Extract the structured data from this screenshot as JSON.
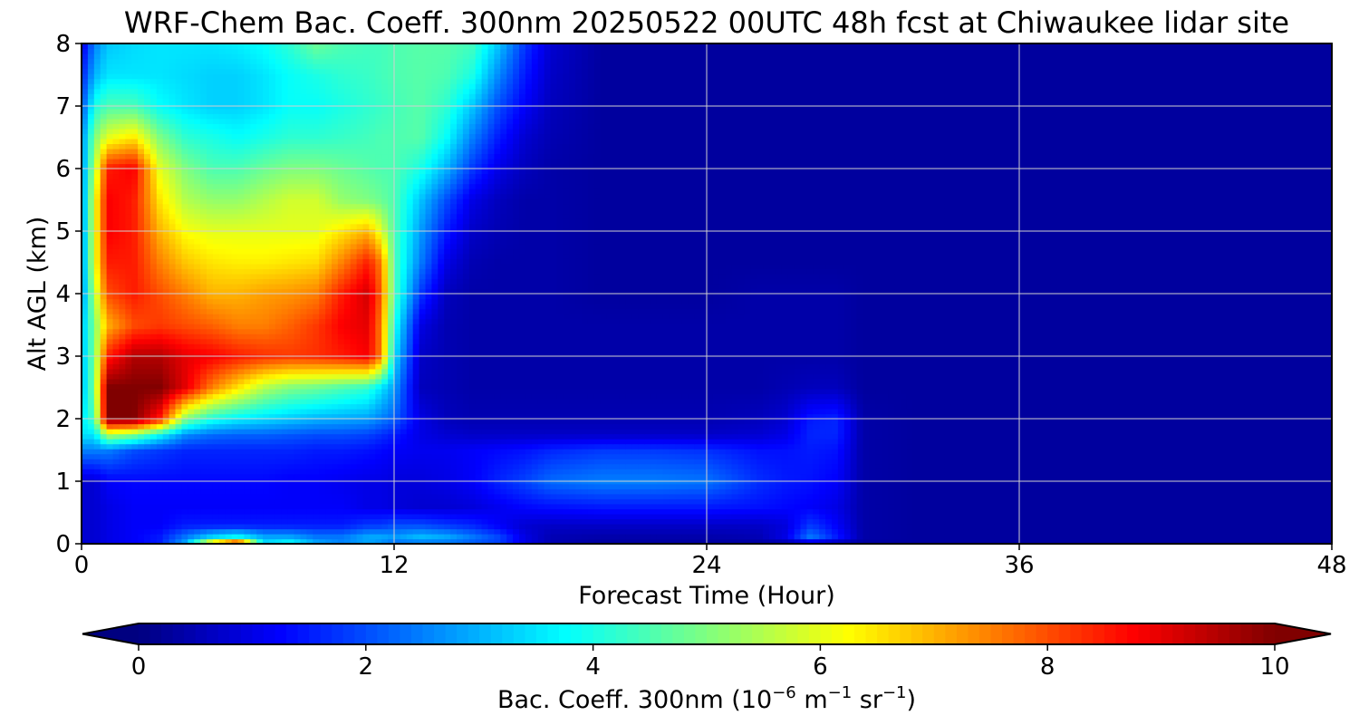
{
  "chart_data": {
    "type": "heatmap",
    "title": "WRF-Chem Bac. Coeff. 300nm  20250522 00UTC 48h fcst at Chiwaukee lidar site",
    "xlabel": "Forecast Time (Hour)",
    "ylabel": "Alt AGL (km)",
    "xlim": [
      0,
      48
    ],
    "ylim": [
      0,
      8
    ],
    "xticks": [
      0,
      12,
      24,
      36,
      48
    ],
    "yticks": [
      0,
      1,
      2,
      3,
      4,
      5,
      6,
      7,
      8
    ],
    "grid": true,
    "colorbar": {
      "label_main": "Bac. Coeff. 300nm  (10",
      "label_exp1": "−6",
      "label_mid": " m",
      "label_exp2": "−1",
      "label_mid2": " sr",
      "label_exp3": "−1",
      "label_end": ")",
      "range": [
        0,
        10
      ],
      "ticks": [
        0,
        2,
        4,
        6,
        8,
        10
      ],
      "extend": "both",
      "colormap": "jet"
    },
    "x_hours": [
      0,
      0.5,
      1,
      2,
      3,
      4,
      5,
      6,
      7,
      8,
      9,
      10,
      11,
      11.5,
      12,
      13,
      14,
      15,
      16,
      17,
      18,
      20,
      22,
      24,
      26,
      27,
      28,
      29,
      30,
      32,
      36,
      42,
      48
    ],
    "y_km": [
      0,
      0.1,
      0.3,
      0.6,
      1.0,
      1.5,
      1.75,
      2.0,
      2.5,
      3.0,
      3.5,
      4.0,
      4.5,
      5.0,
      5.5,
      6.0,
      6.5,
      7.0,
      7.5,
      8.0
    ],
    "values": [
      [
        0.8,
        0.8,
        1.0,
        1.2,
        1.5,
        3.0,
        7.5,
        10.0,
        3.5,
        4.0,
        3.0,
        2.5,
        2.8,
        2.5,
        2.2,
        2.2,
        2.2,
        2.0,
        1.8,
        1.0,
        0.5,
        0.3,
        0.3,
        0.3,
        0.3,
        0.3,
        0.3,
        0.3,
        0.3,
        0.3,
        0.3,
        0.3,
        0.3
      ],
      [
        0.8,
        0.8,
        1.0,
        1.2,
        1.5,
        2.5,
        3.5,
        4.0,
        3.0,
        3.0,
        2.5,
        2.5,
        3.0,
        3.0,
        2.8,
        3.2,
        3.0,
        2.5,
        2.0,
        1.0,
        0.5,
        0.4,
        0.4,
        0.4,
        0.5,
        1.0,
        2.5,
        1.5,
        0.4,
        0.3,
        0.3,
        0.3,
        0.3
      ],
      [
        0.8,
        0.8,
        1.0,
        1.2,
        1.2,
        1.5,
        1.5,
        1.5,
        1.5,
        1.5,
        1.5,
        1.5,
        1.8,
        1.8,
        2.0,
        2.0,
        1.8,
        1.6,
        1.2,
        0.8,
        0.7,
        0.7,
        0.7,
        0.7,
        0.7,
        0.9,
        1.8,
        1.2,
        0.4,
        0.3,
        0.3,
        0.3,
        0.3
      ],
      [
        0.8,
        0.8,
        1.0,
        1.2,
        1.2,
        1.2,
        1.2,
        1.2,
        1.2,
        1.2,
        1.2,
        1.2,
        1.0,
        1.0,
        0.9,
        0.8,
        0.8,
        0.9,
        1.1,
        1.3,
        1.4,
        1.5,
        1.5,
        1.5,
        1.4,
        1.3,
        1.2,
        1.0,
        0.4,
        0.3,
        0.3,
        0.3,
        0.3
      ],
      [
        0.8,
        0.8,
        1.2,
        1.3,
        1.3,
        1.3,
        1.3,
        1.3,
        1.3,
        1.2,
        1.2,
        1.1,
        1.0,
        1.0,
        0.9,
        0.9,
        1.0,
        1.2,
        1.6,
        1.9,
        2.3,
        2.5,
        2.5,
        2.4,
        1.7,
        1.5,
        1.4,
        1.2,
        0.4,
        0.3,
        0.3,
        0.3,
        0.3
      ],
      [
        2.5,
        2.5,
        2.5,
        2.0,
        1.8,
        1.6,
        1.6,
        1.6,
        1.6,
        1.6,
        1.5,
        1.5,
        1.4,
        1.3,
        1.2,
        1.1,
        1.1,
        1.2,
        1.3,
        1.4,
        1.6,
        1.8,
        1.8,
        1.7,
        1.4,
        1.4,
        1.5,
        1.4,
        0.4,
        0.3,
        0.3,
        0.3,
        0.3
      ],
      [
        3.5,
        3.5,
        5.5,
        5.0,
        3.8,
        2.6,
        2.3,
        2.2,
        2.2,
        2.1,
        2.0,
        2.0,
        1.9,
        1.7,
        1.5,
        1.0,
        0.8,
        0.7,
        0.7,
        0.7,
        0.7,
        0.7,
        0.7,
        0.7,
        0.8,
        1.0,
        1.6,
        1.6,
        0.4,
        0.3,
        0.3,
        0.3,
        0.3
      ],
      [
        3.5,
        4.5,
        10.0,
        10.0,
        8.5,
        5.0,
        4.0,
        3.6,
        3.4,
        3.2,
        3.0,
        2.9,
        2.8,
        2.5,
        2.2,
        1.0,
        0.6,
        0.5,
        0.5,
        0.5,
        0.5,
        0.5,
        0.5,
        0.5,
        0.6,
        0.8,
        1.5,
        1.6,
        0.4,
        0.3,
        0.3,
        0.3,
        0.3
      ],
      [
        3.0,
        5.0,
        10.0,
        10.0,
        10.0,
        9.0,
        7.5,
        6.5,
        5.5,
        5.0,
        4.8,
        4.5,
        4.2,
        3.5,
        2.8,
        0.6,
        0.5,
        0.4,
        0.4,
        0.4,
        0.4,
        0.4,
        0.4,
        0.4,
        0.4,
        0.5,
        0.6,
        0.6,
        0.3,
        0.3,
        0.3,
        0.3,
        0.3
      ],
      [
        3.0,
        5.0,
        8.5,
        9.5,
        9.5,
        9.0,
        8.8,
        8.5,
        8.3,
        8.2,
        8.3,
        8.5,
        8.8,
        7.5,
        3.5,
        0.7,
        0.5,
        0.4,
        0.4,
        0.4,
        0.4,
        0.4,
        0.4,
        0.4,
        0.4,
        0.4,
        0.4,
        0.4,
        0.3,
        0.3,
        0.3,
        0.3,
        0.3
      ],
      [
        3.0,
        5.0,
        7.0,
        8.0,
        8.2,
        8.0,
        7.8,
        7.5,
        7.5,
        7.8,
        8.2,
        8.8,
        9.0,
        7.5,
        4.0,
        1.0,
        0.5,
        0.4,
        0.4,
        0.4,
        0.4,
        0.4,
        0.4,
        0.4,
        0.4,
        0.4,
        0.4,
        0.4,
        0.3,
        0.3,
        0.3,
        0.3,
        0.3
      ],
      [
        2.5,
        5.5,
        8.0,
        8.5,
        8.0,
        7.5,
        7.0,
        7.0,
        7.2,
        7.3,
        7.5,
        8.5,
        9.2,
        7.8,
        4.5,
        1.8,
        0.6,
        0.4,
        0.4,
        0.4,
        0.4,
        0.3,
        0.3,
        0.3,
        0.4,
        0.4,
        0.4,
        0.4,
        0.3,
        0.3,
        0.3,
        0.3,
        0.3
      ],
      [
        2.5,
        6.0,
        8.5,
        8.5,
        7.5,
        6.8,
        6.5,
        6.4,
        6.4,
        6.5,
        6.6,
        7.5,
        8.5,
        7.5,
        4.5,
        2.5,
        1.0,
        0.5,
        0.4,
        0.4,
        0.4,
        0.3,
        0.3,
        0.3,
        0.3,
        0.3,
        0.3,
        0.3,
        0.3,
        0.3,
        0.3,
        0.3,
        0.3
      ],
      [
        2.5,
        6.0,
        8.8,
        8.5,
        7.0,
        6.2,
        6.0,
        6.0,
        6.0,
        6.0,
        6.0,
        6.5,
        7.0,
        6.0,
        4.5,
        2.8,
        1.5,
        0.7,
        0.5,
        0.4,
        0.4,
        0.3,
        0.3,
        0.3,
        0.3,
        0.3,
        0.3,
        0.3,
        0.3,
        0.3,
        0.3,
        0.3,
        0.3
      ],
      [
        2.5,
        6.0,
        8.8,
        8.5,
        6.5,
        5.5,
        5.2,
        5.2,
        5.5,
        5.8,
        5.8,
        5.2,
        5.0,
        4.8,
        4.5,
        3.2,
        2.0,
        1.0,
        0.6,
        0.4,
        0.4,
        0.3,
        0.3,
        0.3,
        0.3,
        0.3,
        0.3,
        0.3,
        0.3,
        0.3,
        0.3,
        0.3,
        0.3
      ],
      [
        2.5,
        5.5,
        8.5,
        8.8,
        6.0,
        5.0,
        4.5,
        4.5,
        4.8,
        5.0,
        5.0,
        4.8,
        4.6,
        4.5,
        4.5,
        4.0,
        3.0,
        1.8,
        1.0,
        0.6,
        0.4,
        0.3,
        0.3,
        0.3,
        0.3,
        0.3,
        0.3,
        0.3,
        0.3,
        0.3,
        0.3,
        0.3,
        0.3
      ],
      [
        2.5,
        5.0,
        6.0,
        6.5,
        5.0,
        4.2,
        4.0,
        3.8,
        4.0,
        4.2,
        4.2,
        4.3,
        4.4,
        4.5,
        4.5,
        4.6,
        3.8,
        2.5,
        1.5,
        0.8,
        0.5,
        0.3,
        0.3,
        0.3,
        0.3,
        0.3,
        0.3,
        0.3,
        0.3,
        0.3,
        0.3,
        0.3,
        0.3
      ],
      [
        2.0,
        4.0,
        4.5,
        4.5,
        3.8,
        3.5,
        3.3,
        3.3,
        3.5,
        3.8,
        3.8,
        4.0,
        4.2,
        4.3,
        4.4,
        4.6,
        4.2,
        3.2,
        2.0,
        1.2,
        0.6,
        0.3,
        0.3,
        0.3,
        0.3,
        0.3,
        0.3,
        0.3,
        0.3,
        0.3,
        0.3,
        0.3,
        0.3
      ],
      [
        1.5,
        3.0,
        3.5,
        3.5,
        3.5,
        3.4,
        3.3,
        3.3,
        3.5,
        3.8,
        4.0,
        4.2,
        4.3,
        4.4,
        4.5,
        4.6,
        4.5,
        4.0,
        2.6,
        1.5,
        0.7,
        0.3,
        0.3,
        0.3,
        0.3,
        0.3,
        0.3,
        0.3,
        0.3,
        0.3,
        0.3,
        0.3,
        0.3
      ],
      [
        1.0,
        2.5,
        3.2,
        3.4,
        3.5,
        3.5,
        3.5,
        3.6,
        3.8,
        4.2,
        4.8,
        4.5,
        4.4,
        4.4,
        4.5,
        4.6,
        4.6,
        4.4,
        3.2,
        1.8,
        0.8,
        0.3,
        0.3,
        0.3,
        0.3,
        0.3,
        0.3,
        0.3,
        0.3,
        0.3,
        0.3,
        0.3,
        0.3
      ]
    ]
  }
}
